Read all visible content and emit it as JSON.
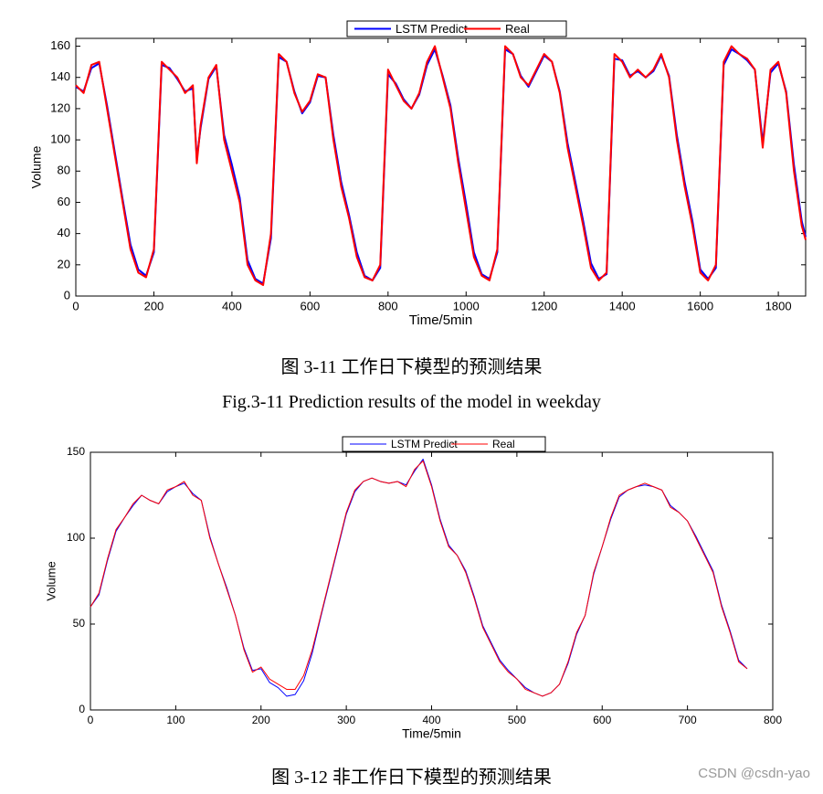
{
  "chart_data": [
    {
      "type": "line",
      "ylabel": "Volume",
      "xlabel": "Time/5min",
      "caption": "图 3-11 工作日下模型的预测结果",
      "caption_en": "Fig.3-11 Prediction results of the model in weekday",
      "xlim": [
        0,
        1870
      ],
      "ylim": [
        0,
        165
      ],
      "xticks": [
        0,
        200,
        400,
        600,
        800,
        1000,
        1200,
        1400,
        1600,
        1800
      ],
      "yticks": [
        0,
        20,
        40,
        60,
        80,
        100,
        120,
        140,
        160
      ],
      "x": [
        0,
        20,
        40,
        60,
        80,
        100,
        120,
        140,
        160,
        180,
        200,
        220,
        240,
        260,
        280,
        300,
        310,
        320,
        340,
        360,
        380,
        400,
        420,
        440,
        460,
        480,
        500,
        520,
        540,
        560,
        580,
        600,
        620,
        640,
        660,
        680,
        700,
        720,
        740,
        760,
        780,
        800,
        820,
        840,
        860,
        880,
        900,
        920,
        940,
        960,
        980,
        1000,
        1020,
        1040,
        1060,
        1080,
        1100,
        1120,
        1140,
        1160,
        1180,
        1200,
        1220,
        1240,
        1260,
        1280,
        1300,
        1320,
        1340,
        1360,
        1380,
        1400,
        1420,
        1440,
        1460,
        1480,
        1500,
        1520,
        1540,
        1560,
        1580,
        1600,
        1620,
        1640,
        1660,
        1680,
        1700,
        1720,
        1740,
        1760,
        1780,
        1800,
        1820,
        1840,
        1860,
        1870
      ],
      "series": [
        {
          "name": "LSTM Predict",
          "color": "#0000ff",
          "values": [
            134,
            131,
            146,
            149,
            122,
            92,
            62,
            33,
            17,
            13,
            28,
            148,
            146,
            139,
            131,
            133,
            88,
            108,
            139,
            147,
            103,
            84,
            63,
            23,
            11,
            8,
            37,
            153,
            150,
            131,
            117,
            124,
            141,
            140,
            103,
            73,
            52,
            28,
            13,
            10,
            18,
            142,
            136,
            126,
            120,
            129,
            148,
            158,
            141,
            122,
            88,
            59,
            28,
            14,
            11,
            28,
            158,
            155,
            141,
            134,
            144,
            154,
            150,
            131,
            98,
            73,
            48,
            21,
            11,
            14,
            152,
            151,
            141,
            144,
            140,
            144,
            154,
            141,
            103,
            73,
            48,
            17,
            11,
            18,
            148,
            158,
            155,
            151,
            145,
            98,
            143,
            149,
            131,
            84,
            48,
            38
          ]
        },
        {
          "name": "Real",
          "color": "#ff0000",
          "values": [
            135,
            130,
            148,
            150,
            120,
            90,
            60,
            30,
            15,
            12,
            30,
            150,
            145,
            140,
            130,
            135,
            85,
            110,
            140,
            148,
            100,
            80,
            60,
            20,
            10,
            7,
            40,
            155,
            150,
            130,
            118,
            125,
            142,
            140,
            100,
            70,
            50,
            25,
            12,
            10,
            20,
            145,
            135,
            125,
            120,
            130,
            150,
            160,
            140,
            120,
            85,
            55,
            25,
            13,
            10,
            30,
            160,
            155,
            140,
            135,
            145,
            155,
            150,
            130,
            95,
            70,
            45,
            18,
            10,
            15,
            155,
            150,
            140,
            145,
            140,
            145,
            155,
            140,
            100,
            70,
            45,
            15,
            10,
            20,
            150,
            160,
            155,
            152,
            145,
            95,
            145,
            150,
            130,
            80,
            45,
            36
          ]
        }
      ]
    },
    {
      "type": "line",
      "ylabel": "Volume",
      "xlabel": "Time/5min",
      "caption": "图 3-12 非工作日下模型的预测结果",
      "xlim": [
        0,
        800
      ],
      "ylim": [
        0,
        150
      ],
      "xticks": [
        0,
        100,
        200,
        300,
        400,
        500,
        600,
        700,
        800
      ],
      "yticks": [
        0,
        50,
        100,
        150
      ],
      "x": [
        0,
        10,
        20,
        30,
        40,
        50,
        60,
        70,
        80,
        90,
        100,
        110,
        120,
        130,
        140,
        150,
        160,
        170,
        180,
        190,
        200,
        210,
        220,
        230,
        240,
        250,
        260,
        270,
        280,
        290,
        300,
        310,
        320,
        330,
        340,
        350,
        360,
        370,
        380,
        390,
        400,
        410,
        420,
        430,
        440,
        450,
        460,
        470,
        480,
        490,
        500,
        510,
        520,
        530,
        540,
        550,
        560,
        570,
        580,
        590,
        600,
        610,
        620,
        630,
        640,
        650,
        660,
        670,
        680,
        690,
        700,
        710,
        720,
        730,
        740,
        750,
        760,
        770
      ],
      "series": [
        {
          "name": "LSTM Predict",
          "color": "#0000ff",
          "values": [
            60,
            67,
            87,
            104,
            112,
            119,
            125,
            122,
            120,
            127,
            130,
            132,
            126,
            122,
            101,
            85,
            71,
            55,
            36,
            23,
            24,
            16,
            13,
            8,
            9,
            17,
            33,
            54,
            74,
            94,
            114,
            127,
            133,
            135,
            133,
            132,
            133,
            131,
            139,
            146,
            131,
            111,
            96,
            90,
            81,
            66,
            49,
            39,
            29,
            23,
            18,
            13,
            10,
            8,
            10,
            15,
            27,
            44,
            55,
            79,
            95,
            111,
            124,
            128,
            130,
            131,
            130,
            128,
            119,
            115,
            110,
            101,
            91,
            81,
            61,
            46,
            29,
            24
          ]
        },
        {
          "name": "Real",
          "color": "#ff0000",
          "values": [
            60,
            68,
            88,
            105,
            112,
            120,
            125,
            122,
            120,
            128,
            130,
            133,
            125,
            122,
            100,
            85,
            70,
            55,
            35,
            22,
            25,
            18,
            15,
            12,
            12,
            20,
            35,
            55,
            75,
            95,
            115,
            128,
            133,
            135,
            133,
            132,
            133,
            130,
            140,
            145,
            130,
            110,
            95,
            90,
            80,
            65,
            48,
            38,
            28,
            22,
            18,
            12,
            10,
            8,
            10,
            15,
            28,
            45,
            55,
            80,
            95,
            112,
            125,
            128,
            130,
            132,
            130,
            128,
            118,
            115,
            110,
            100,
            90,
            80,
            60,
            45,
            28,
            24
          ]
        }
      ]
    }
  ],
  "watermark": "CSDN @csdn-yao"
}
